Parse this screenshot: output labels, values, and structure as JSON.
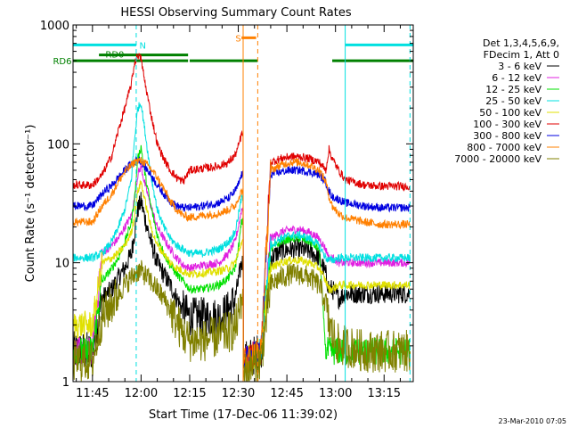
{
  "chart_data": {
    "type": "line",
    "title": "HESSI Observing Summary Count Rates",
    "xlabel": "Start Time (17-Dec-06 11:39:02)",
    "ylabel": "Count Rate (s⁻¹ detector⁻¹)",
    "yscale": "log",
    "ylim": [
      1,
      1000
    ],
    "xlim_minutes": [
      0,
      105
    ],
    "x_ticks": [
      "11:45",
      "12:00",
      "12:15",
      "12:30",
      "12:45",
      "13:00",
      "13:15"
    ],
    "x_tick_minutes": [
      6,
      21,
      36,
      51,
      66,
      81,
      96
    ],
    "y_ticks": [
      "1",
      "10",
      "100",
      "1000"
    ],
    "y_tick_values": [
      1,
      10,
      100,
      1000
    ],
    "legend_placement": "top-right",
    "legend_header": [
      "Det 1,3,4,5,6,9,",
      "FDecim 1, Att 0"
    ],
    "series": [
      {
        "name": "3 - 6 keV",
        "color": "#000000",
        "x": [
          0,
          3,
          6,
          9,
          12,
          14,
          16,
          18,
          19,
          20,
          21,
          22,
          24,
          26,
          28,
          30,
          32,
          34,
          36,
          40,
          45,
          48,
          50,
          51,
          52,
          53,
          58,
          61,
          64,
          67,
          70,
          73,
          76,
          78,
          79,
          80,
          82,
          84,
          90,
          95,
          101,
          104
        ],
        "y": [
          1.8,
          1.8,
          1.8,
          5,
          6,
          7.5,
          9,
          12,
          18,
          28,
          33,
          25,
          15,
          10,
          8,
          6.5,
          5,
          4,
          3.5,
          3.5,
          3.5,
          4,
          5,
          7,
          10,
          1.5,
          1.8,
          11,
          12.5,
          13,
          13,
          12.5,
          11,
          8,
          6,
          6,
          5,
          5.5,
          5.5,
          5.5,
          5.5,
          5.5
        ]
      },
      {
        "name": "6 - 12 keV",
        "color": "#e020e0",
        "x": [
          0,
          3,
          6,
          9,
          12,
          14,
          16,
          18,
          19,
          20,
          21,
          22,
          24,
          26,
          28,
          30,
          32,
          34,
          36,
          40,
          45,
          48,
          50,
          51,
          52,
          53,
          58,
          61,
          64,
          67,
          70,
          73,
          76,
          78,
          79,
          80,
          82,
          84,
          90,
          95,
          101,
          104
        ],
        "y": [
          1.8,
          1.8,
          1.8,
          12,
          14,
          16,
          20,
          25,
          35,
          55,
          65,
          48,
          30,
          20,
          16,
          13,
          11,
          9.5,
          9,
          9.5,
          10,
          12,
          15,
          20,
          28,
          1.5,
          1.8,
          16,
          18,
          19,
          19,
          18,
          16,
          13,
          11,
          11,
          10,
          10,
          10,
          10,
          10,
          10
        ]
      },
      {
        "name": "12 - 25 keV",
        "color": "#00e000",
        "x": [
          0,
          3,
          6,
          9,
          12,
          14,
          16,
          18,
          19,
          20,
          21,
          22,
          24,
          26,
          28,
          30,
          32,
          34,
          36,
          40,
          45,
          48,
          50,
          51,
          52,
          53,
          58,
          61,
          64,
          67,
          70,
          73,
          76,
          78,
          79,
          80,
          82,
          84,
          90,
          95,
          101,
          104
        ],
        "y": [
          1.8,
          1.8,
          1.8,
          7,
          9,
          11,
          15,
          22,
          35,
          75,
          95,
          60,
          30,
          17,
          12,
          9.5,
          8,
          7,
          6,
          6,
          6.5,
          7.5,
          9,
          13,
          22,
          1.5,
          1.8,
          13,
          15,
          16,
          16,
          15,
          13,
          1.8,
          1.8,
          1.8,
          1.8,
          1.8,
          1.8,
          1.8,
          1.8,
          1.8
        ]
      },
      {
        "name": "25 - 50 keV",
        "color": "#00e0e0",
        "x": [
          0,
          3,
          6,
          9,
          12,
          14,
          16,
          18,
          19,
          20,
          21,
          22,
          24,
          26,
          28,
          30,
          32,
          34,
          36,
          40,
          45,
          48,
          50,
          51,
          52,
          53,
          58,
          61,
          64,
          67,
          70,
          73,
          76,
          78,
          79,
          80,
          82,
          84,
          90,
          95,
          101,
          104
        ],
        "y": [
          11,
          11,
          11,
          12,
          15,
          20,
          28,
          50,
          110,
          200,
          220,
          140,
          55,
          28,
          20,
          16,
          14,
          13,
          12,
          12,
          13,
          15,
          18,
          25,
          35,
          1.5,
          1.8,
          14,
          16,
          17,
          17,
          16,
          14,
          11,
          10.5,
          10.5,
          11,
          11,
          11,
          11,
          11,
          11
        ]
      },
      {
        "name": "50 - 100 keV",
        "color": "#e0e000",
        "x": [
          0,
          3,
          6,
          9,
          12,
          14,
          16,
          18,
          19,
          20,
          21,
          22,
          24,
          26,
          28,
          30,
          32,
          34,
          36,
          40,
          45,
          48,
          50,
          51,
          52,
          53,
          58,
          61,
          64,
          67,
          70,
          73,
          76,
          78,
          79,
          80,
          82,
          84,
          90,
          95,
          101,
          104
        ],
        "y": [
          3,
          3,
          3,
          10,
          11,
          12,
          14,
          18,
          25,
          40,
          48,
          35,
          20,
          14,
          12,
          10,
          9,
          8.5,
          8,
          8.2,
          8.5,
          9,
          10,
          12,
          15,
          1.5,
          1.8,
          9,
          10,
          10.5,
          10.5,
          10,
          9,
          7,
          6,
          6,
          6.5,
          6.5,
          6.5,
          6.5,
          6.5,
          6.5
        ]
      },
      {
        "name": "100 - 300 keV",
        "color": "#e00000",
        "x": [
          0,
          3,
          6,
          9,
          12,
          14,
          16,
          18,
          19,
          20,
          21,
          22,
          24,
          26,
          28,
          30,
          32,
          34,
          36,
          40,
          45,
          48,
          50,
          51,
          52,
          53,
          58,
          61,
          64,
          67,
          70,
          73,
          76,
          78,
          79,
          80,
          82,
          84,
          90,
          95,
          101,
          104
        ],
        "y": [
          45,
          45,
          45,
          55,
          80,
          130,
          200,
          320,
          480,
          560,
          520,
          350,
          180,
          100,
          75,
          60,
          52,
          48,
          60,
          62,
          65,
          70,
          80,
          95,
          120,
          1.5,
          1.8,
          70,
          75,
          78,
          78,
          75,
          70,
          60,
          90,
          75,
          60,
          50,
          45,
          44,
          44,
          44
        ]
      },
      {
        "name": "300 - 800 keV",
        "color": "#0000e0",
        "x": [
          0,
          3,
          6,
          9,
          12,
          14,
          16,
          18,
          19,
          20,
          21,
          22,
          24,
          26,
          28,
          30,
          32,
          34,
          36,
          40,
          45,
          48,
          50,
          51,
          52,
          53,
          58,
          61,
          64,
          67,
          70,
          73,
          76,
          78,
          79,
          80,
          82,
          84,
          90,
          95,
          101,
          104
        ],
        "y": [
          30,
          30,
          30,
          38,
          45,
          52,
          60,
          68,
          72,
          74,
          72,
          65,
          55,
          45,
          38,
          33,
          30,
          29,
          29,
          30,
          32,
          35,
          40,
          45,
          55,
          1.5,
          1.8,
          55,
          58,
          60,
          60,
          58,
          55,
          48,
          40,
          36,
          34,
          32,
          30,
          29,
          29,
          29
        ]
      },
      {
        "name": "800 - 7000 keV",
        "color": "#ff8000",
        "x": [
          0,
          3,
          6,
          9,
          12,
          14,
          16,
          18,
          19,
          20,
          21,
          22,
          24,
          26,
          28,
          30,
          32,
          34,
          36,
          40,
          45,
          48,
          50,
          51,
          52,
          53,
          58,
          61,
          64,
          67,
          70,
          73,
          76,
          78,
          79,
          80,
          82,
          84,
          90,
          95,
          101,
          104
        ],
        "y": [
          22,
          22,
          22,
          30,
          38,
          48,
          58,
          66,
          70,
          72,
          72,
          70,
          62,
          52,
          42,
          33,
          28,
          25,
          24,
          25,
          26,
          28,
          30,
          35,
          40,
          1.5,
          1.8,
          60,
          66,
          70,
          70,
          66,
          60,
          48,
          36,
          30,
          26,
          24,
          22,
          21,
          21,
          21
        ]
      },
      {
        "name": "7000 - 20000 keV",
        "color": "#808000",
        "x": [
          0,
          3,
          6,
          9,
          12,
          14,
          16,
          18,
          19,
          20,
          21,
          22,
          24,
          26,
          28,
          30,
          32,
          34,
          36,
          40,
          45,
          48,
          50,
          51,
          52,
          53,
          58,
          61,
          64,
          67,
          70,
          73,
          76,
          78,
          79,
          80,
          82,
          84,
          90,
          95,
          101,
          104
        ],
        "y": [
          1.5,
          1.5,
          1.5,
          3.5,
          4.5,
          5.5,
          6.5,
          7.5,
          8,
          8.5,
          8.5,
          8,
          7,
          6,
          5,
          4,
          3.2,
          2.5,
          2.2,
          2.2,
          2.4,
          2.6,
          2.8,
          3.5,
          5,
          1.2,
          1.5,
          6.5,
          7.5,
          8,
          8,
          7.5,
          6.5,
          4.5,
          3,
          2.5,
          2,
          2,
          1.8,
          1.8,
          1.8,
          1.8
        ]
      }
    ],
    "annotations": {
      "flags": [
        {
          "label": "N",
          "color": "#00e0e0",
          "segments": [
            [
              0,
              19.5
            ],
            [
              84,
              105
            ]
          ],
          "level": 680
        },
        {
          "label": "S",
          "color": "#ff8000",
          "segments": [
            [
              52,
              56.5
            ]
          ],
          "level": 780
        },
        {
          "label": "RD0",
          "color": "#008000",
          "segments": [
            [
              8,
              35.5
            ]
          ],
          "level": 560
        },
        {
          "label": "RD6",
          "color": "#008000",
          "segments": [
            [
              0,
              35.5
            ],
            [
              36,
              57
            ],
            [
              80,
              105
            ]
          ],
          "level": 500
        }
      ],
      "vlines": [
        {
          "x": 19.5,
          "color": "#00e0e0",
          "dashed": true
        },
        {
          "x": 84,
          "color": "#00e0e0",
          "dashed": false
        },
        {
          "x": 104,
          "color": "#00e0e0",
          "dashed": true
        },
        {
          "x": 52.5,
          "color": "#ff8000",
          "dashed": false
        },
        {
          "x": 57,
          "color": "#ff8000",
          "dashed": true
        }
      ]
    }
  },
  "timestamp": "23-Mar-2010 07:05"
}
